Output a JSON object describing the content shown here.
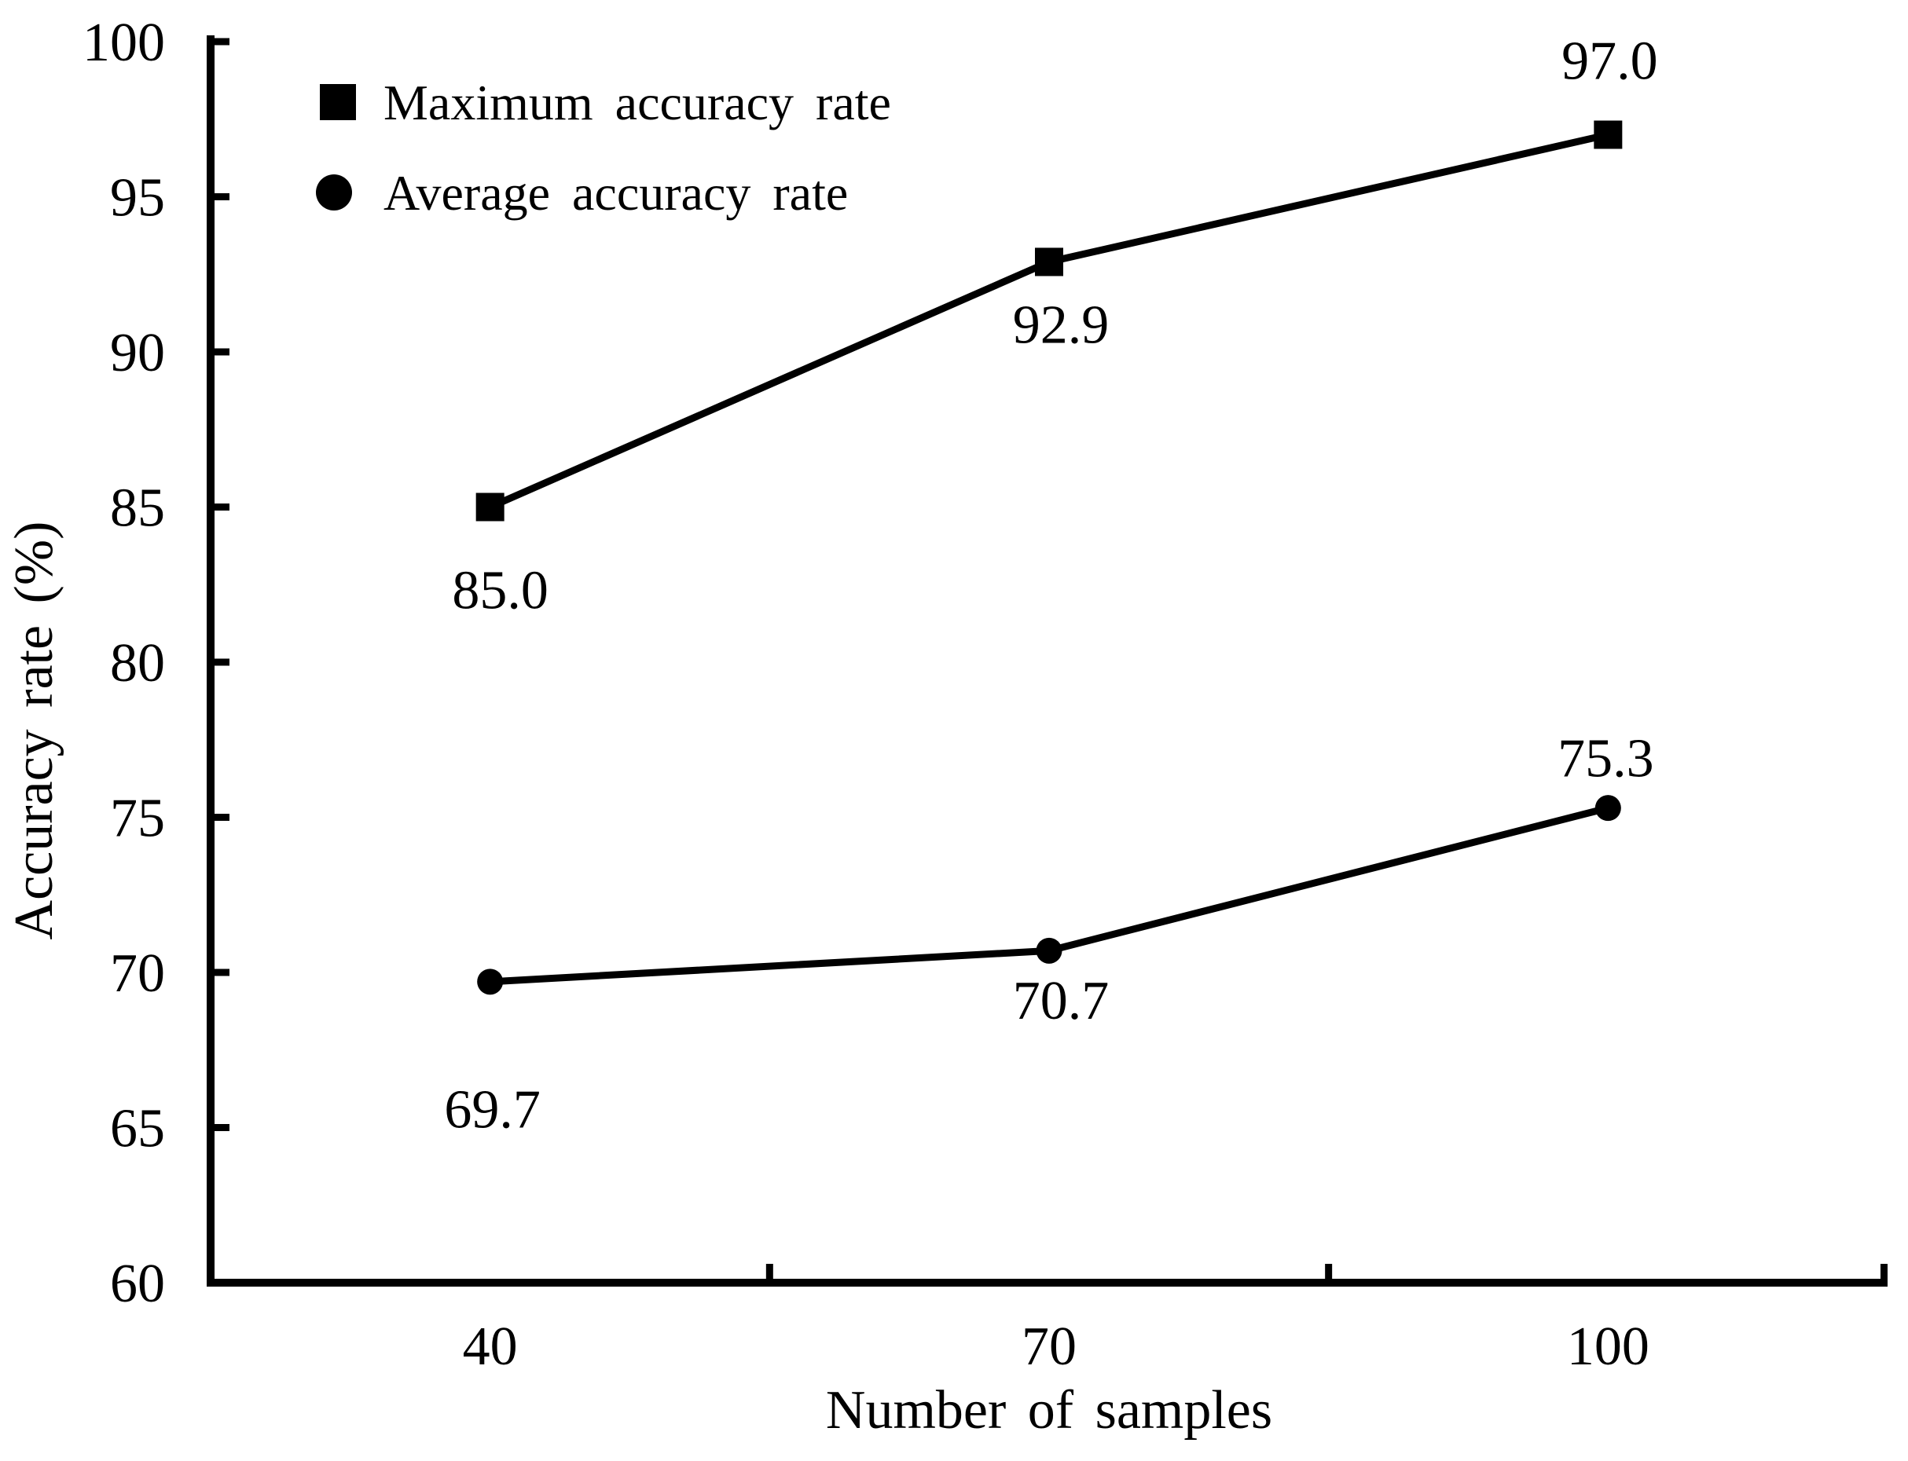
{
  "chart_data": {
    "type": "line",
    "title": "",
    "xlabel": "Number of samples",
    "ylabel": "Accuracy rate (%)",
    "categories": [
      "40",
      "70",
      "100"
    ],
    "series": [
      {
        "name": "Maximum accuracy rate",
        "marker": "square",
        "values": [
          85.0,
          92.9,
          97.0
        ],
        "point_labels": [
          "85.0",
          "92.9",
          "97.0"
        ]
      },
      {
        "name": "Average accuracy rate",
        "marker": "circle",
        "values": [
          69.7,
          70.7,
          75.3
        ],
        "point_labels": [
          "69.7",
          "70.7",
          "75.3"
        ]
      }
    ],
    "y_axis": {
      "min": 60,
      "max": 100,
      "step": 5,
      "tick_labels": [
        "60",
        "65",
        "70",
        "75",
        "80",
        "85",
        "90",
        "95",
        "100"
      ]
    },
    "x_axis": {
      "tick_labels": [
        "40",
        "70",
        "100"
      ]
    },
    "legend_position": "top-left",
    "grid": false,
    "colors": {
      "foreground": "#000000",
      "background": "#ffffff"
    }
  }
}
